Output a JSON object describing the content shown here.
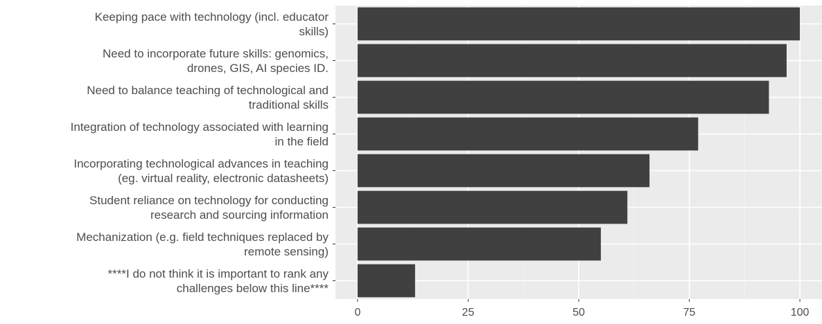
{
  "chart_data": {
    "type": "bar",
    "orientation": "horizontal",
    "categories": [
      [
        "Keeping pace with technology (incl. educator",
        "skills)"
      ],
      [
        "Need to incorporate future skills: genomics,",
        "drones, GIS, AI species ID."
      ],
      [
        "Need to balance teaching of technological and",
        "traditional skills"
      ],
      [
        "Integration of technology associated with learning",
        "in the field"
      ],
      [
        "Incorporating technological advances in teaching",
        "(eg. virtual reality, electronic datasheets)"
      ],
      [
        "Student reliance on technology for conducting",
        "research and sourcing information"
      ],
      [
        "Mechanization (e.g. field techniques replaced by",
        "remote sensing)"
      ],
      [
        "****I do not think it is important to rank any",
        "challenges below this line****"
      ]
    ],
    "values": [
      100,
      97,
      93,
      77,
      66,
      61,
      55,
      13
    ],
    "xlim": [
      -5,
      105
    ],
    "xticks": [
      0,
      25,
      50,
      75,
      100
    ],
    "tick_labels": [
      "0",
      "25",
      "50",
      "75",
      "100"
    ],
    "title": "",
    "xlabel": "",
    "ylabel": "",
    "grid": true,
    "legend": "none",
    "colors": {
      "bar": "#404040",
      "panel": "#ebebeb",
      "grid_major": "#ffffff",
      "grid_minor": "#f5f5f5",
      "text": "#4d4d4d",
      "tick": "#333333"
    }
  }
}
